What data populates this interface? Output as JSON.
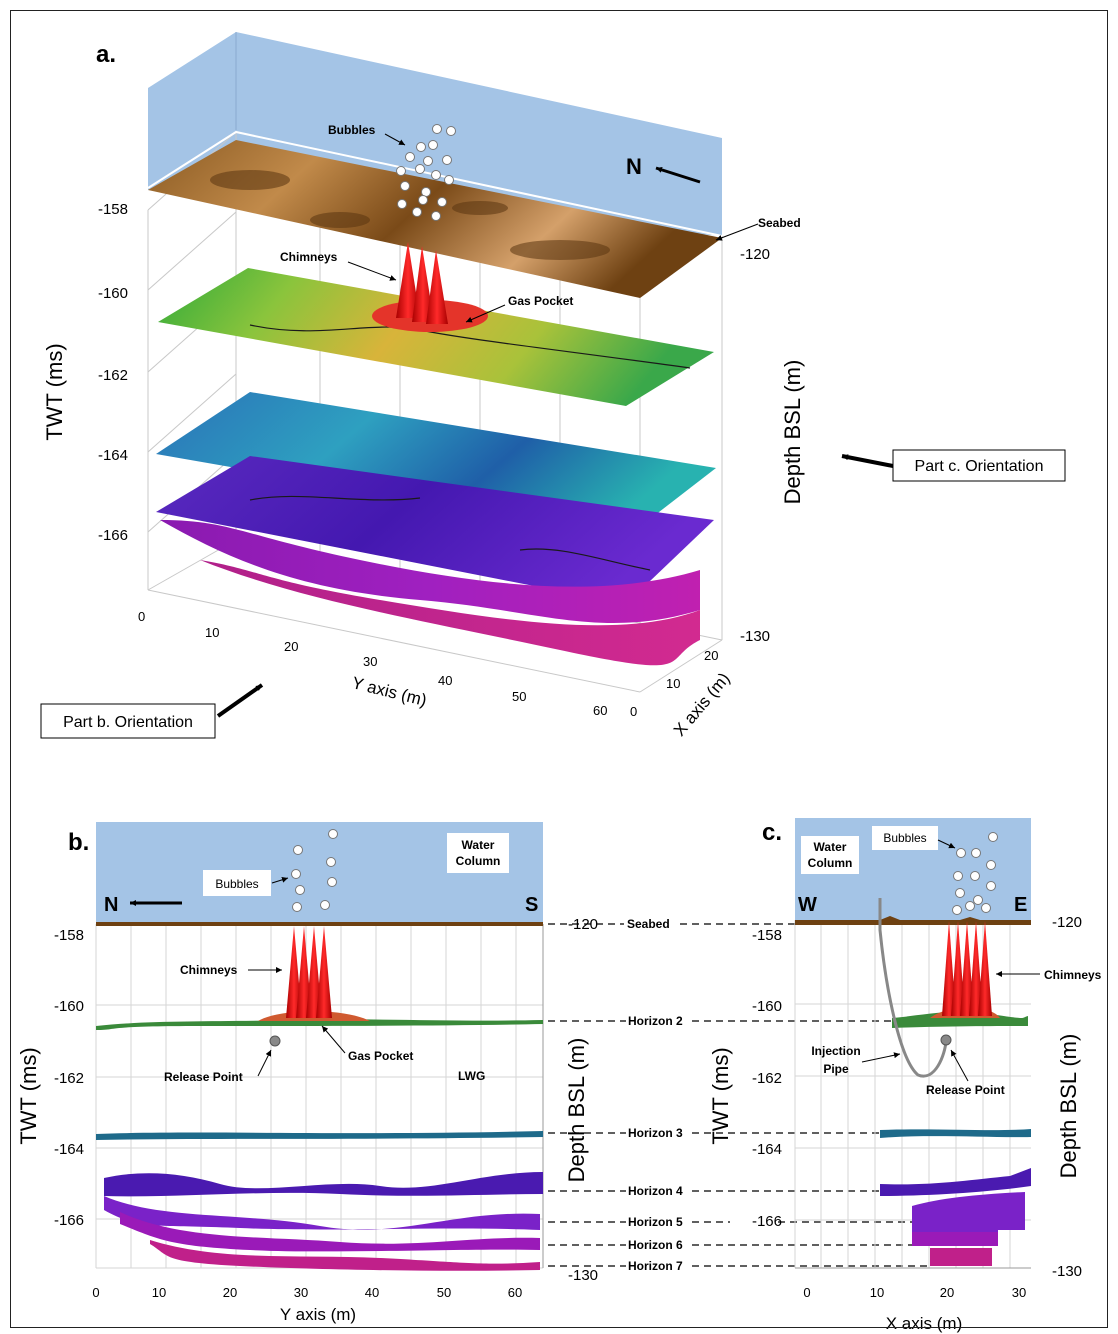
{
  "panel_a": {
    "label": "a.",
    "left_axis_title": "TWT (ms)",
    "right_axis_title": "Depth BSL (m)",
    "left_ticks": [
      "-158",
      "-160",
      "-162",
      "-164",
      "-166"
    ],
    "right_ticks": [
      "-120",
      "-130"
    ],
    "y_axis_title": "Y axis (m)",
    "y_ticks": [
      "0",
      "10",
      "20",
      "30",
      "40",
      "50",
      "60"
    ],
    "x_axis_title": "X axis (m)",
    "x_ticks": [
      "0",
      "10",
      "20"
    ],
    "annotations": {
      "bubbles": "Bubbles",
      "seabed": "Seabed",
      "chimneys": "Chimneys",
      "gas_pocket": "Gas Pocket",
      "north": "N"
    },
    "callout_c": "Part c. Orientation",
    "callout_b": "Part b. Orientation"
  },
  "panel_b": {
    "label": "b.",
    "left_axis_title": "TWT (ms)",
    "right_axis_title": "Depth BSL (m)",
    "left_ticks": [
      "-158",
      "-160",
      "-162",
      "-164",
      "-166"
    ],
    "right_ticks": [
      "-120",
      "-130"
    ],
    "x_axis_title": "Y axis (m)",
    "x_ticks": [
      "0",
      "10",
      "20",
      "30",
      "40",
      "50",
      "60"
    ],
    "water_column": [
      "Water",
      "Column"
    ],
    "bubbles": "Bubbles",
    "north": "N",
    "south": "S",
    "chimneys": "Chimneys",
    "gas_pocket": "Gas Pocket",
    "release_point": "Release Point",
    "lwg": "LWG"
  },
  "panel_c": {
    "label": "c.",
    "left_axis_title": "TWT (ms)",
    "right_axis_title": "Depth BSL (m)",
    "left_ticks": [
      "-158",
      "-160",
      "-162",
      "-164",
      "-166"
    ],
    "right_ticks": [
      "-120",
      "-130"
    ],
    "x_axis_title": "X axis (m)",
    "x_ticks": [
      "0",
      "10",
      "20",
      "30"
    ],
    "water_column": [
      "Water",
      "Column"
    ],
    "bubbles": "Bubbles",
    "west": "W",
    "east": "E",
    "chimneys": "Chimneys",
    "injection_pipe": [
      "Injection",
      "Pipe"
    ],
    "release_point": "Release Point"
  },
  "horizons": [
    "Seabed",
    "Horizon 2",
    "Horizon 3",
    "Horizon 4",
    "Horizon 5",
    "Horizon 6",
    "Horizon 7"
  ]
}
